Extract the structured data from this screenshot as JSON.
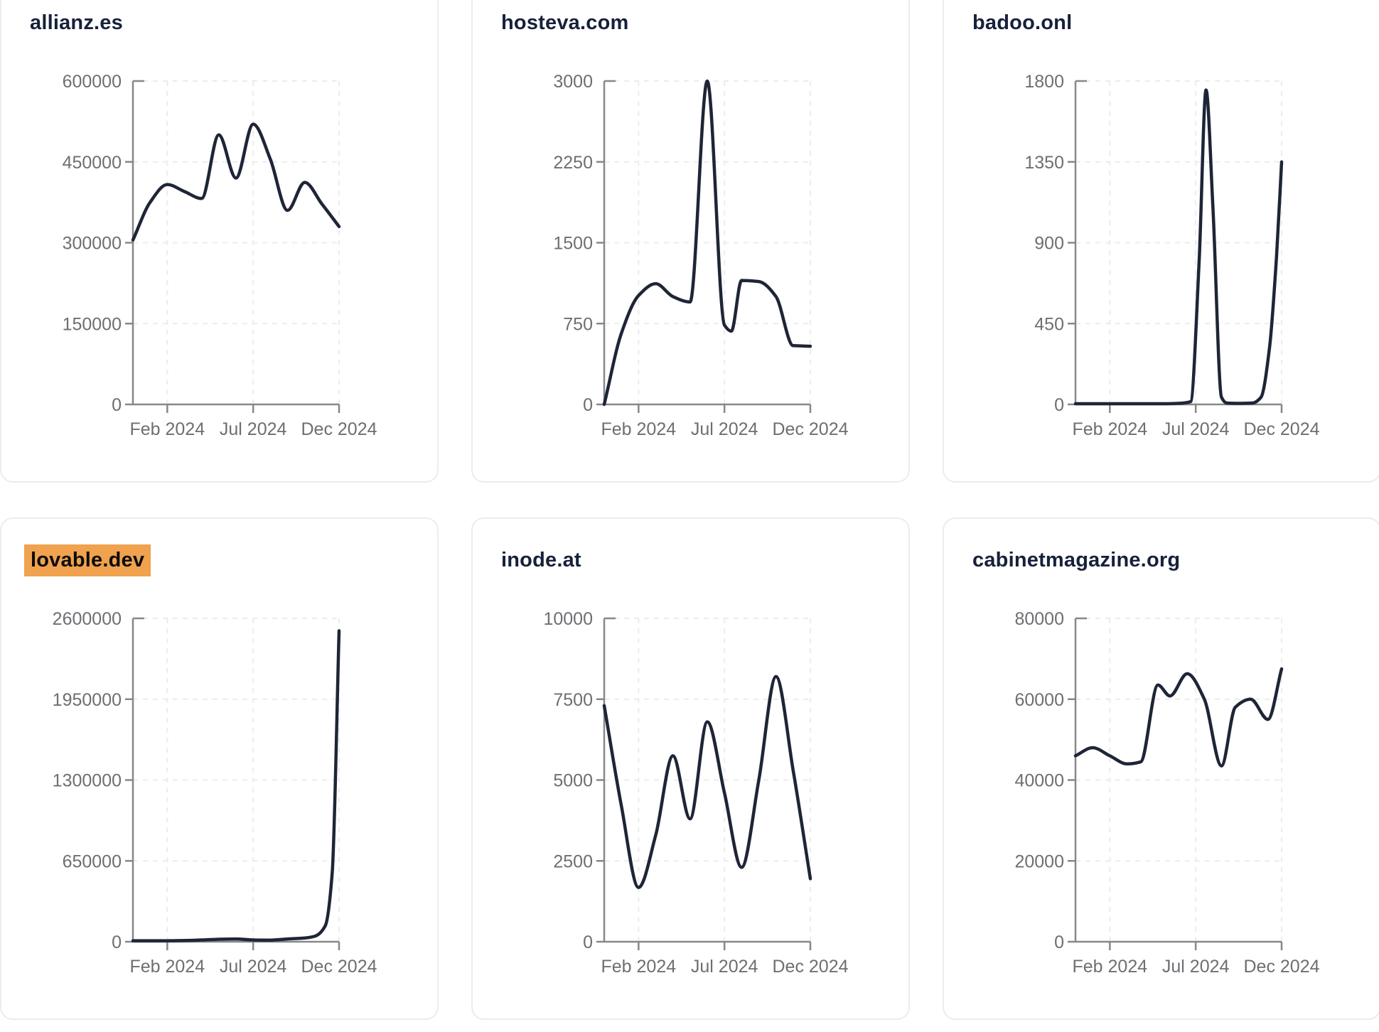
{
  "page": {
    "background": "#ffffff",
    "layout": "2x3-grid-of-domain-traffic-cards"
  },
  "style": {
    "line_color": "#1e2536",
    "axis_color": "#87878c",
    "grid_color": "#ececef",
    "tick_label_color": "#6e6e73",
    "title_color": "#16213a",
    "card_border_color": "#ececee",
    "card_bg": "#ffffff",
    "highlight_color": "#f0a24e",
    "highlight_text_color": "#0b0b0b"
  },
  "chart_data": [
    {
      "type": "line",
      "title": "allianz.es",
      "highlighted": false,
      "x_tick_labels": [
        "Feb 2024",
        "Jul 2024",
        "Dec 2024"
      ],
      "x_tick_months": [
        2,
        7,
        12
      ],
      "y_tick_labels": [
        "0",
        "150000",
        "300000",
        "450000",
        "600000"
      ],
      "ylim": [
        0,
        600000
      ],
      "grid": "dashed",
      "series": [
        {
          "name": "traffic",
          "points": [
            [
              0,
              305000
            ],
            [
              1,
              375000
            ],
            [
              2,
              408000
            ],
            [
              3,
              395000
            ],
            [
              4,
              382000
            ],
            [
              5,
              500000
            ],
            [
              6,
              420000
            ],
            [
              7,
              520000
            ],
            [
              8,
              455000
            ],
            [
              9,
              360000
            ],
            [
              10,
              412000
            ],
            [
              11,
              372000
            ],
            [
              12,
              330000
            ]
          ]
        }
      ]
    },
    {
      "type": "line",
      "title": "hosteva.com",
      "highlighted": false,
      "x_tick_labels": [
        "Feb 2024",
        "Jul 2024",
        "Dec 2024"
      ],
      "x_tick_months": [
        2,
        7,
        12
      ],
      "y_tick_labels": [
        "0",
        "750",
        "1500",
        "2250",
        "3000"
      ],
      "ylim": [
        0,
        3000
      ],
      "grid": "dashed",
      "series": [
        {
          "name": "traffic",
          "points": [
            [
              0,
              0
            ],
            [
              1,
              660
            ],
            [
              2,
              1010
            ],
            [
              3,
              1120
            ],
            [
              4,
              1000
            ],
            [
              5,
              950
            ],
            [
              6,
              3000
            ],
            [
              7,
              735
            ],
            [
              7.4,
              680
            ],
            [
              8,
              1150
            ],
            [
              9,
              1140
            ],
            [
              10,
              1000
            ],
            [
              11,
              545
            ],
            [
              12,
              540
            ]
          ]
        }
      ]
    },
    {
      "type": "line",
      "title": "badoo.onl",
      "highlighted": false,
      "x_tick_labels": [
        "Feb 2024",
        "Jul 2024",
        "Dec 2024"
      ],
      "x_tick_months": [
        2,
        7,
        12
      ],
      "y_tick_labels": [
        "0",
        "450",
        "900",
        "1350",
        "1800"
      ],
      "ylim": [
        0,
        1800
      ],
      "grid": "dashed",
      "series": [
        {
          "name": "traffic",
          "points": [
            [
              0,
              4
            ],
            [
              2,
              4
            ],
            [
              4,
              4
            ],
            [
              5,
              4
            ],
            [
              6,
              6
            ],
            [
              6.7,
              15
            ],
            [
              7.2,
              800
            ],
            [
              7.6,
              1750
            ],
            [
              8,
              1100
            ],
            [
              8.5,
              40
            ],
            [
              8.8,
              8
            ],
            [
              9.5,
              6
            ],
            [
              10.3,
              8
            ],
            [
              10.8,
              40
            ],
            [
              11.3,
              320
            ],
            [
              11.7,
              820
            ],
            [
              12,
              1350
            ]
          ]
        }
      ]
    },
    {
      "type": "line",
      "title": "lovable.dev",
      "highlighted": true,
      "x_tick_labels": [
        "Feb 2024",
        "Jul 2024",
        "Dec 2024"
      ],
      "x_tick_months": [
        2,
        7,
        12
      ],
      "y_tick_labels": [
        "0",
        "650000",
        "1300000",
        "1950000",
        "2600000"
      ],
      "ylim": [
        0,
        2600000
      ],
      "grid": "dashed",
      "series": [
        {
          "name": "traffic",
          "points": [
            [
              0,
              8000
            ],
            [
              1,
              8000
            ],
            [
              2,
              8000
            ],
            [
              3,
              10000
            ],
            [
              4,
              14000
            ],
            [
              5,
              20000
            ],
            [
              6,
              22000
            ],
            [
              7,
              14000
            ],
            [
              8,
              13000
            ],
            [
              9,
              22000
            ],
            [
              10,
              30000
            ],
            [
              10.6,
              45000
            ],
            [
              11.2,
              130000
            ],
            [
              11.6,
              550000
            ],
            [
              12,
              2500000
            ]
          ]
        }
      ]
    },
    {
      "type": "line",
      "title": "inode.at",
      "highlighted": false,
      "x_tick_labels": [
        "Feb 2024",
        "Jul 2024",
        "Dec 2024"
      ],
      "x_tick_months": [
        2,
        7,
        12
      ],
      "y_tick_labels": [
        "0",
        "2500",
        "5000",
        "7500",
        "10000"
      ],
      "ylim": [
        0,
        10000
      ],
      "grid": "dashed",
      "series": [
        {
          "name": "traffic",
          "points": [
            [
              0,
              7300
            ],
            [
              1,
              4200
            ],
            [
              2,
              1680
            ],
            [
              3,
              3300
            ],
            [
              4,
              5750
            ],
            [
              5,
              3800
            ],
            [
              6,
              6800
            ],
            [
              7,
              4600
            ],
            [
              8,
              2300
            ],
            [
              9,
              5000
            ],
            [
              10,
              8200
            ],
            [
              11,
              5300
            ],
            [
              12,
              1950
            ]
          ]
        }
      ]
    },
    {
      "type": "line",
      "title": "cabinetmagazine.org",
      "highlighted": false,
      "x_tick_labels": [
        "Feb 2024",
        "Jul 2024",
        "Dec 2024"
      ],
      "x_tick_months": [
        2,
        7,
        12
      ],
      "y_tick_labels": [
        "0",
        "20000",
        "40000",
        "60000",
        "80000"
      ],
      "ylim": [
        0,
        80000
      ],
      "grid": "dashed",
      "series": [
        {
          "name": "traffic",
          "points": [
            [
              0,
              46000
            ],
            [
              1,
              48000
            ],
            [
              2,
              46000
            ],
            [
              3,
              44000
            ],
            [
              3.8,
              44500
            ],
            [
              4.8,
              63500
            ],
            [
              5.5,
              60800
            ],
            [
              6.5,
              66300
            ],
            [
              7.5,
              60000
            ],
            [
              8.5,
              43500
            ],
            [
              9.3,
              58000
            ],
            [
              10.2,
              60000
            ],
            [
              11.2,
              55000
            ],
            [
              12,
              67500
            ]
          ]
        }
      ]
    }
  ]
}
